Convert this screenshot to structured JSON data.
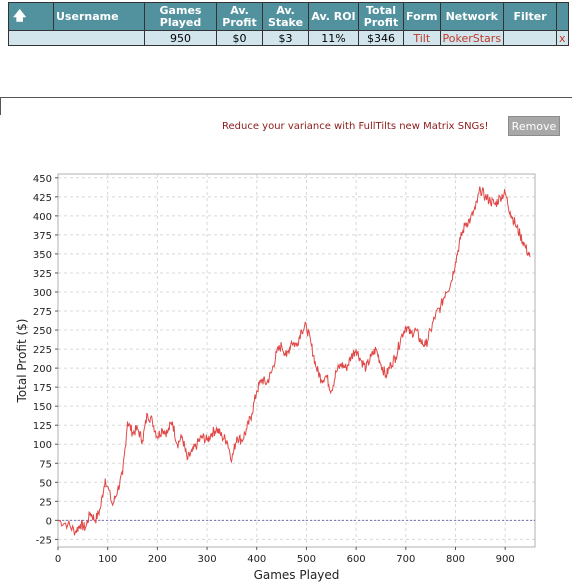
{
  "table": {
    "headers": [
      "",
      "Username",
      "Games Played",
      "Av. Profit",
      "Av. Stake",
      "Av. ROI",
      "Total Profit",
      "Form",
      "Network",
      "Filter",
      ""
    ],
    "rows": [
      {
        "username": "",
        "games_played": "950",
        "av_profit": "$0",
        "av_stake": "$3",
        "av_roi": "11%",
        "total_profit": "$346",
        "form": "Tilt",
        "network": "PokerStars",
        "filter": "",
        "remove": "x"
      }
    ],
    "sort_icon": "arrow-up-icon"
  },
  "promo": {
    "text": "Reduce your variance with FullTilts new Matrix SNGs!",
    "remove_label": "Remove"
  },
  "chart_data": {
    "type": "line",
    "xlabel": "Games Played",
    "ylabel": "Total Profit ($)",
    "xlim": [
      0,
      960
    ],
    "ylim": [
      -35,
      455
    ],
    "xticks": [
      0,
      100,
      200,
      300,
      400,
      500,
      600,
      700,
      800,
      900
    ],
    "yticks": [
      -25,
      0,
      25,
      50,
      75,
      100,
      125,
      150,
      175,
      200,
      225,
      250,
      275,
      300,
      325,
      350,
      375,
      400,
      425,
      450
    ],
    "grid": true,
    "line_color": "#e04848",
    "zero_line_color": "#7070c0",
    "series": [
      {
        "x": [
          0,
          20,
          35,
          45,
          55,
          65,
          75,
          85,
          95,
          110,
          120,
          130,
          140,
          150,
          160,
          170,
          180,
          190,
          200,
          210,
          220,
          230,
          240,
          250,
          260,
          270,
          280,
          290,
          300,
          310,
          320,
          330,
          340,
          350,
          360,
          370,
          380,
          390,
          400,
          410,
          420,
          430,
          440,
          450,
          460,
          470,
          480,
          490,
          500,
          510,
          520,
          530,
          540,
          550,
          560,
          570,
          580,
          590,
          600,
          610,
          620,
          630,
          640,
          650,
          660,
          670,
          680,
          690,
          700,
          710,
          720,
          730,
          740,
          750,
          760,
          770,
          780,
          790,
          800,
          810,
          820,
          830,
          840,
          850,
          860,
          870,
          880,
          890,
          900,
          910,
          920,
          930,
          940,
          950
        ],
        "y": [
          0,
          -5,
          -15,
          -5,
          -10,
          10,
          0,
          15,
          55,
          20,
          40,
          60,
          130,
          115,
          120,
          105,
          140,
          130,
          110,
          120,
          115,
          130,
          100,
          110,
          80,
          90,
          100,
          110,
          105,
          115,
          120,
          110,
          105,
          80,
          110,
          105,
          120,
          140,
          170,
          185,
          180,
          195,
          220,
          230,
          215,
          235,
          230,
          250,
          255,
          230,
          200,
          185,
          190,
          170,
          195,
          205,
          200,
          215,
          225,
          210,
          200,
          215,
          225,
          205,
          190,
          205,
          215,
          240,
          255,
          245,
          250,
          235,
          230,
          250,
          270,
          280,
          300,
          310,
          340,
          370,
          390,
          395,
          410,
          435,
          425,
          420,
          415,
          425,
          430,
          405,
          390,
          375,
          360,
          346
        ]
      }
    ]
  }
}
